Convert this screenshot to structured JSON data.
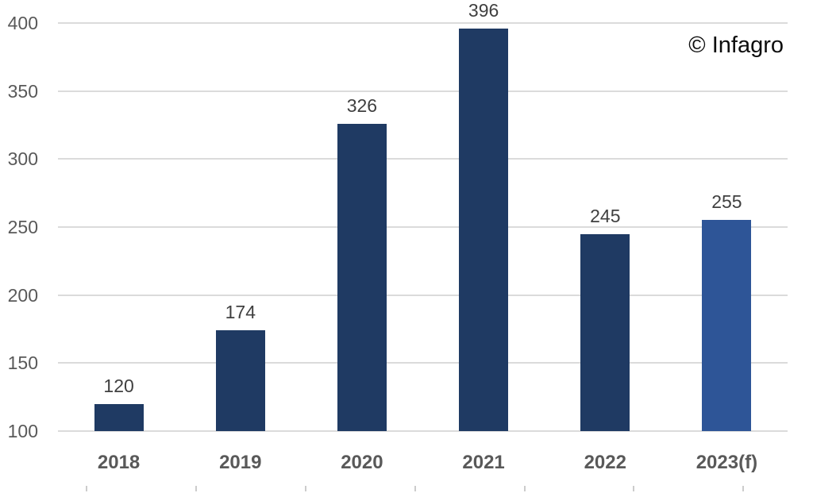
{
  "watermark": "© Infagro",
  "colors": {
    "background": "#FFFFFF",
    "bar_default": "#1F3A63",
    "bar_forecast": "#2E5597",
    "gridline": "#DBDBDB",
    "axis_label": "#595959",
    "value_label": "#404040",
    "watermark_text": "#0D0D0D",
    "bottom_tick": "#CCCCCC"
  },
  "chart_data": {
    "type": "bar",
    "title": "",
    "xlabel": "",
    "ylabel": "",
    "categories": [
      "2018",
      "2019",
      "2020",
      "2021",
      "2022",
      "2023(f)"
    ],
    "values": [
      120,
      174,
      326,
      396,
      245,
      255
    ],
    "bar_colors": [
      "#1F3A63",
      "#1F3A63",
      "#1F3A63",
      "#1F3A63",
      "#1F3A63",
      "#2E5597"
    ],
    "ylim": [
      100,
      400
    ],
    "yticks": [
      100,
      150,
      200,
      250,
      300,
      350,
      400
    ],
    "grid": true,
    "legend": false,
    "data_labels": true,
    "annotations": [
      "© Infagro"
    ]
  }
}
